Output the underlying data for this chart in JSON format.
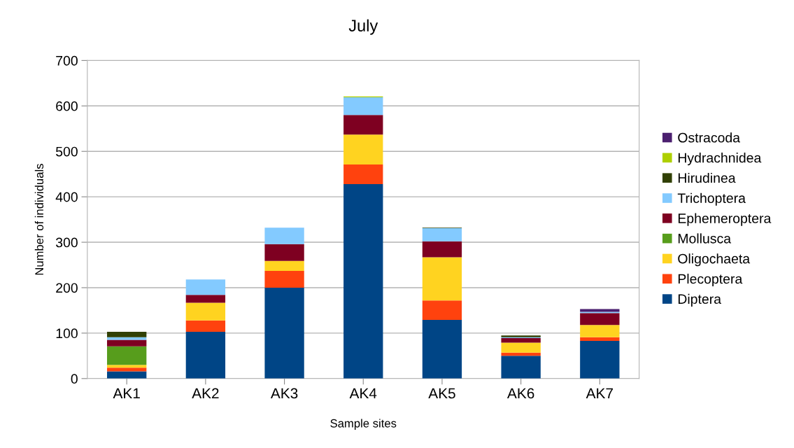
{
  "chart_data": {
    "type": "bar",
    "stacked": true,
    "title": "July",
    "xlabel": "Sample sites",
    "ylabel": "Number of individuals",
    "categories": [
      "AK1",
      "AK2",
      "AK3",
      "AK4",
      "AK5",
      "AK6",
      "AK7"
    ],
    "series": [
      {
        "name": "Diptera",
        "color": "#004586",
        "values": [
          16,
          103,
          200,
          428,
          129,
          50,
          83
        ]
      },
      {
        "name": "Plecoptera",
        "color": "#ff420e",
        "values": [
          8,
          25,
          37,
          43,
          43,
          7,
          8
        ]
      },
      {
        "name": "Oligochaeta",
        "color": "#ffd320",
        "values": [
          6,
          39,
          22,
          66,
          95,
          22,
          27
        ]
      },
      {
        "name": "Mollusca",
        "color": "#579d1c",
        "values": [
          41,
          0,
          0,
          0,
          0,
          0,
          0
        ]
      },
      {
        "name": "Ephemeroptera",
        "color": "#7e0021",
        "values": [
          14,
          17,
          37,
          43,
          35,
          10,
          26
        ]
      },
      {
        "name": "Trichoptera",
        "color": "#83caff",
        "values": [
          6,
          34,
          36,
          39,
          29,
          2,
          3
        ]
      },
      {
        "name": "Hirudinea",
        "color": "#314004",
        "values": [
          12,
          0,
          0,
          0,
          1,
          4,
          0
        ]
      },
      {
        "name": "Hydrachnidea",
        "color": "#aecf00",
        "values": [
          0,
          0,
          0,
          2,
          0,
          0,
          0
        ]
      },
      {
        "name": "Ostracoda",
        "color": "#4b1f6f",
        "values": [
          0,
          0,
          0,
          0,
          0,
          0,
          6
        ]
      }
    ],
    "ylim": [
      0,
      700
    ],
    "yticks": [
      0,
      100,
      200,
      300,
      400,
      500,
      600,
      700
    ],
    "grid": "y",
    "legend": "right"
  }
}
